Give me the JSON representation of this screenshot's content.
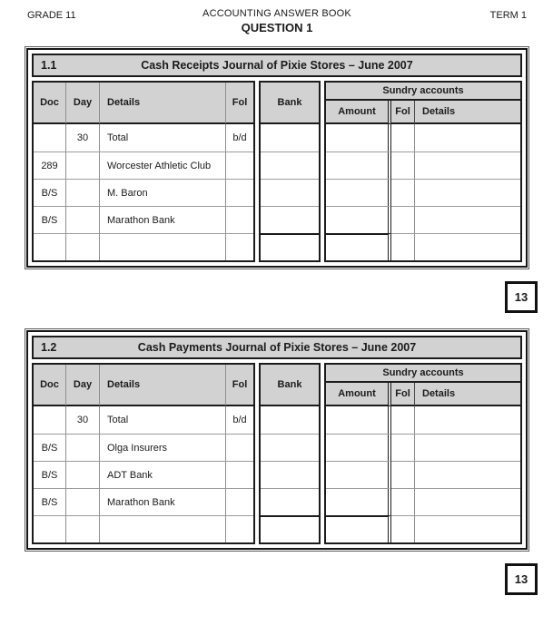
{
  "page_header": {
    "left": "GRADE 11",
    "center": "ACCOUNTING ANSWER BOOK",
    "right": "TERM 1",
    "question": "QUESTION 1"
  },
  "columns": {
    "doc": "Doc",
    "day": "Day",
    "details": "Details",
    "fol": "Fol",
    "bank": "Bank",
    "sundry": "Sundry accounts",
    "amount": "Amount",
    "sundry_fol": "Fol",
    "sundry_details": "Details"
  },
  "journals": [
    {
      "number": "1.1",
      "title": "Cash Receipts Journal of Pixie Stores – June 2007",
      "rows": [
        {
          "doc": "",
          "day": "30",
          "details": "Total",
          "fol": "b/d"
        },
        {
          "doc": "289",
          "day": "",
          "details": "Worcester Athletic Club",
          "fol": ""
        },
        {
          "doc": "B/S",
          "day": "",
          "details": "M. Baron",
          "fol": ""
        },
        {
          "doc": "B/S",
          "day": "",
          "details": "Marathon Bank",
          "fol": ""
        },
        {
          "doc": "",
          "day": "",
          "details": "",
          "fol": ""
        }
      ],
      "marks": "13"
    },
    {
      "number": "1.2",
      "title": "Cash Payments Journal of Pixie Stores – June 2007",
      "rows": [
        {
          "doc": "",
          "day": "30",
          "details": "Total",
          "fol": "b/d"
        },
        {
          "doc": "B/S",
          "day": "",
          "details": "Olga Insurers",
          "fol": ""
        },
        {
          "doc": "B/S",
          "day": "",
          "details": "ADT Bank",
          "fol": ""
        },
        {
          "doc": "B/S",
          "day": "",
          "details": "Marathon Bank",
          "fol": ""
        },
        {
          "doc": "",
          "day": "",
          "details": "",
          "fol": ""
        }
      ],
      "marks": "13"
    }
  ],
  "colors": {
    "header_fill": "#d2d2d2",
    "grid_line": "#9c9c9c",
    "border": "#1b1b1b"
  }
}
